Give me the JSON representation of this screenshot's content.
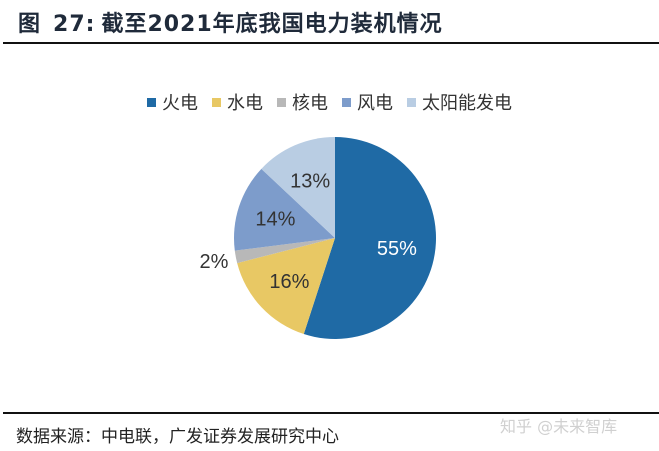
{
  "header": {
    "figure_label": "图",
    "figure_number": "27:",
    "title": "截至2021年底我国电力装机情况"
  },
  "chart_data": {
    "type": "pie",
    "title": "截至2021年底我国电力装机情况",
    "categories": [
      "火电",
      "水电",
      "核电",
      "风电",
      "太阳能发电"
    ],
    "values": [
      55,
      16,
      2,
      14,
      13
    ],
    "labels": [
      "55%",
      "16%",
      "2%",
      "14%",
      "13%"
    ],
    "colors": [
      "#1f6aa5",
      "#e8c864",
      "#b8b8b8",
      "#7d9ccb",
      "#b9cde3"
    ],
    "legend_position": "top",
    "start_angle_deg": 0,
    "direction": "clockwise"
  },
  "legend": {
    "items": [
      {
        "label": "火电",
        "color": "#1f6aa5"
      },
      {
        "label": "水电",
        "color": "#e8c864"
      },
      {
        "label": "核电",
        "color": "#b8b8b8"
      },
      {
        "label": "风电",
        "color": "#7d9ccb"
      },
      {
        "label": "太阳能发电",
        "color": "#b9cde3"
      }
    ]
  },
  "footer": {
    "source": "数据来源：中电联，广发证券发展研究中心",
    "watermark": "知乎 @未来智库"
  }
}
